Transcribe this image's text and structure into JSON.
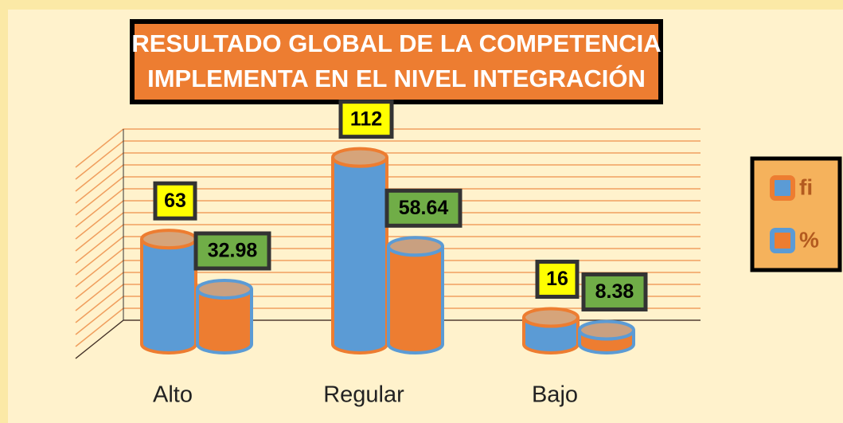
{
  "chart_data": {
    "type": "bar",
    "title": [
      "RESULTADO GLOBAL DE LA COMPETENCIA",
      "IMPLEMENTA EN EL NIVEL INTEGRACIÓN"
    ],
    "categories": [
      "Alto",
      "Regular",
      "Bajo"
    ],
    "series": [
      {
        "name": "fi",
        "color": "#5b9bd5",
        "values": [
          63,
          112,
          16
        ]
      },
      {
        "name": "%",
        "color": "#ed7d31",
        "values": [
          32.98,
          58.64,
          8.38
        ]
      }
    ],
    "ylim": [
      0,
      130
    ],
    "legend": "right"
  }
}
